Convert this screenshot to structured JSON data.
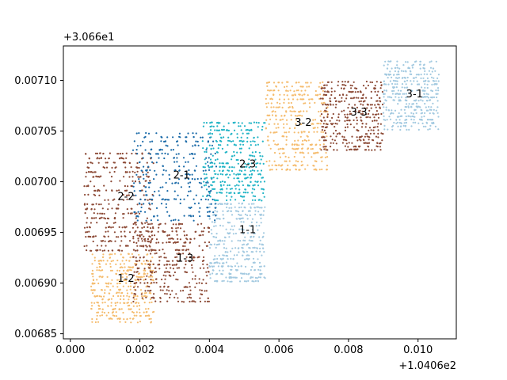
{
  "chart_data": {
    "type": "scatter",
    "title": "",
    "xlabel": "",
    "ylabel": "",
    "x_offset_label": "+1.0406e2",
    "y_offset_label": "+3.066e1",
    "xlim": [
      -0.0002,
      0.0111
    ],
    "ylim": [
      0.006845,
      0.007134
    ],
    "x_ticks": [
      0.0,
      0.002,
      0.004,
      0.006,
      0.008,
      0.01
    ],
    "x_tick_labels": [
      "0.000",
      "0.002",
      "0.004",
      "0.006",
      "0.008",
      "0.010"
    ],
    "y_ticks": [
      0.00685,
      0.0069,
      0.00695,
      0.007,
      0.00705,
      0.0071
    ],
    "y_tick_labels": [
      "0.00685",
      "0.00690",
      "0.00695",
      "0.00700",
      "0.00705",
      "0.00710"
    ],
    "grid": false,
    "legend": "none",
    "colors": {
      "sienna": "#8c4a36",
      "light_orange": "#f5bc6e",
      "light_blue": "#a2c9e0",
      "dark_blue": "#1a6aa8",
      "teal": "#22b4c6",
      "axis": "#000000"
    },
    "series": [
      {
        "label": "1-2",
        "color": "light_orange",
        "x_range": [
          0.0006,
          0.0024
        ],
        "y_range": [
          0.00686,
          0.00693
        ],
        "label_at": [
          0.0016,
          0.006905
        ]
      },
      {
        "label": "1-3",
        "color": "sienna",
        "x_range": [
          0.0018,
          0.004
        ],
        "y_range": [
          0.00688,
          0.00696
        ],
        "label_at": [
          0.0033,
          0.006925
        ]
      },
      {
        "label": "1-1",
        "color": "light_blue",
        "x_range": [
          0.004,
          0.0056
        ],
        "y_range": [
          0.0069,
          0.00698
        ],
        "label_at": [
          0.0051,
          0.006953
        ]
      },
      {
        "label": "2-2",
        "color": "sienna",
        "x_range": [
          0.0004,
          0.0024
        ],
        "y_range": [
          0.00693,
          0.00703
        ],
        "label_at": [
          0.0016,
          0.006986
        ]
      },
      {
        "label": "2-1",
        "color": "dark_blue",
        "x_range": [
          0.0018,
          0.0042
        ],
        "y_range": [
          0.00696,
          0.00705
        ],
        "label_at": [
          0.0032,
          0.007007
        ]
      },
      {
        "label": "2-3",
        "color": "teal",
        "x_range": [
          0.0038,
          0.0056
        ],
        "y_range": [
          0.00698,
          0.00706
        ],
        "label_at": [
          0.0051,
          0.007018
        ]
      },
      {
        "label": "3-2",
        "color": "light_orange",
        "x_range": [
          0.0056,
          0.0074
        ],
        "y_range": [
          0.00701,
          0.0071
        ],
        "label_at": [
          0.0067,
          0.007059
        ]
      },
      {
        "label": "3-3",
        "color": "sienna",
        "x_range": [
          0.0072,
          0.009
        ],
        "y_range": [
          0.00703,
          0.0071
        ],
        "label_at": [
          0.0083,
          0.007069
        ]
      },
      {
        "label": "3-1",
        "color": "light_blue",
        "x_range": [
          0.009,
          0.0106
        ],
        "y_range": [
          0.00705,
          0.00712
        ],
        "label_at": [
          0.0099,
          0.007087
        ]
      }
    ]
  }
}
